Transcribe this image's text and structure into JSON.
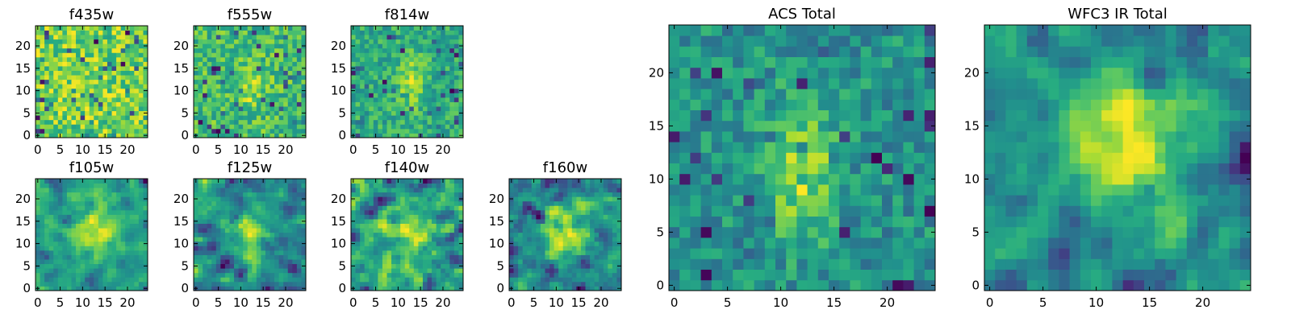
{
  "chart_data": [
    {
      "type": "heatmap",
      "title": "f435w",
      "grid_size": [
        25,
        25
      ],
      "xlim": [
        0,
        24
      ],
      "ylim": [
        0,
        24
      ],
      "xticks": [
        0,
        5,
        10,
        15,
        20
      ],
      "yticks": [
        0,
        5,
        10,
        15,
        20
      ],
      "colormap": "viridis",
      "description": "noise-like field with no clear central source",
      "grid": false
    },
    {
      "type": "heatmap",
      "title": "f555w",
      "grid_size": [
        25,
        25
      ],
      "xlim": [
        0,
        24
      ],
      "ylim": [
        0,
        24
      ],
      "xticks": [
        0,
        5,
        10,
        15,
        20
      ],
      "yticks": [
        0,
        5,
        10,
        15,
        20
      ],
      "colormap": "viridis",
      "description": "faint central source near (12,12)",
      "grid": false
    },
    {
      "type": "heatmap",
      "title": "f814w",
      "grid_size": [
        25,
        25
      ],
      "xlim": [
        0,
        24
      ],
      "ylim": [
        0,
        24
      ],
      "xticks": [
        0,
        5,
        10,
        15,
        20
      ],
      "yticks": [
        0,
        5,
        10,
        15,
        20
      ],
      "colormap": "viridis",
      "description": "brighter elongated central source near (12,12)",
      "grid": false
    },
    {
      "type": "heatmap",
      "title": "f105w",
      "grid_size": [
        25,
        25
      ],
      "xlim": [
        0,
        24
      ],
      "ylim": [
        0,
        24
      ],
      "xticks": [
        0,
        5,
        10,
        15,
        20
      ],
      "yticks": [
        0,
        5,
        10,
        15,
        20
      ],
      "colormap": "viridis",
      "description": "central source with dark patches near lower right",
      "grid": false
    },
    {
      "type": "heatmap",
      "title": "f125w",
      "grid_size": [
        25,
        25
      ],
      "xlim": [
        0,
        24
      ],
      "ylim": [
        0,
        24
      ],
      "xticks": [
        0,
        5,
        10,
        15,
        20
      ],
      "yticks": [
        0,
        5,
        10,
        15,
        20
      ],
      "colormap": "viridis",
      "description": "smoothed field with faint central source",
      "grid": false
    },
    {
      "type": "heatmap",
      "title": "f140w",
      "grid_size": [
        25,
        25
      ],
      "xlim": [
        0,
        24
      ],
      "ylim": [
        0,
        24
      ],
      "xticks": [
        0,
        5,
        10,
        15,
        20
      ],
      "yticks": [
        0,
        5,
        10,
        15,
        20
      ],
      "colormap": "viridis",
      "description": "smoothed field, mottled yellow and green",
      "grid": false
    },
    {
      "type": "heatmap",
      "title": "f160w",
      "grid_size": [
        25,
        25
      ],
      "xlim": [
        0,
        24
      ],
      "ylim": [
        0,
        24
      ],
      "xticks": [
        0,
        5,
        10,
        15,
        20
      ],
      "yticks": [
        0,
        5,
        10,
        15,
        20
      ],
      "colormap": "viridis",
      "description": "central source with dark patches near bottom",
      "grid": false
    },
    {
      "type": "heatmap",
      "title": "ACS Total",
      "grid_size": [
        25,
        25
      ],
      "xlim": [
        0,
        24
      ],
      "ylim": [
        0,
        24
      ],
      "xticks": [
        0,
        5,
        10,
        15,
        20
      ],
      "yticks": [
        0,
        5,
        10,
        15,
        20
      ],
      "colormap": "viridis",
      "description": "bright elongated source centred near (12,11)",
      "grid": false
    },
    {
      "type": "heatmap",
      "title": "WFC3 IR Total",
      "grid_size": [
        25,
        25
      ],
      "xlim": [
        0,
        24
      ],
      "ylim": [
        0,
        24
      ],
      "xticks": [
        0,
        5,
        10,
        15,
        20
      ],
      "yticks": [
        0,
        5,
        10,
        15,
        20
      ],
      "colormap": "viridis",
      "description": "bright diffuse source centred near (13,13)",
      "grid": false
    }
  ]
}
